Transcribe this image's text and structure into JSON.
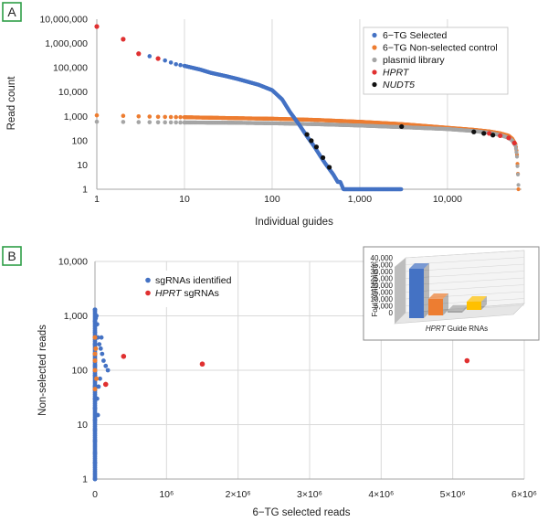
{
  "panels": {
    "a": "A",
    "b": "B"
  },
  "chart_data": [
    {
      "id": "A",
      "type": "scatter",
      "xscale": "log",
      "yscale": "log",
      "xlim": [
        1,
        70000
      ],
      "ylim": [
        1,
        10000000
      ],
      "xlabel": "Individual guides",
      "ylabel": "Read count",
      "xticks": [
        {
          "v": 1,
          "label": "1"
        },
        {
          "v": 10,
          "label": "10"
        },
        {
          "v": 100,
          "label": "100"
        },
        {
          "v": 1000,
          "label": "1,000"
        },
        {
          "v": 10000,
          "label": "10,000"
        }
      ],
      "yticks": [
        {
          "v": 1,
          "label": "1"
        },
        {
          "v": 10,
          "label": "10"
        },
        {
          "v": 100,
          "label": "100"
        },
        {
          "v": 1000,
          "label": "1,000"
        },
        {
          "v": 10000,
          "label": "10,000"
        },
        {
          "v": 100000,
          "label": "100,000"
        },
        {
          "v": 1000000,
          "label": "1,000,000"
        },
        {
          "v": 10000000,
          "label": "10,000,000"
        }
      ],
      "grid": "vertical",
      "legend_position": "top-right",
      "series": [
        {
          "name": "6−TG Selected",
          "color": "#4472c4",
          "style": "dots",
          "points": [
            [
              1,
              5000000
            ],
            [
              2,
              1500000
            ],
            [
              3,
              380000
            ],
            [
              4,
              300000
            ],
            [
              5,
              240000
            ],
            [
              6,
              200000
            ],
            [
              7,
              165000
            ],
            [
              8,
              140000
            ],
            [
              10,
              120000
            ],
            [
              15,
              85000
            ],
            [
              20,
              62000
            ],
            [
              30,
              45000
            ],
            [
              40,
              35000
            ],
            [
              50,
              28000
            ],
            [
              70,
              20000
            ],
            [
              100,
              12000
            ],
            [
              130,
              5000
            ],
            [
              160,
              1500
            ],
            [
              200,
              500
            ],
            [
              250,
              150
            ],
            [
              300,
              60
            ],
            [
              350,
              25
            ],
            [
              400,
              12
            ],
            [
              500,
              4
            ],
            [
              560,
              2
            ],
            [
              600,
              2
            ],
            [
              650,
              1
            ],
            [
              700,
              1
            ],
            [
              1000,
              1
            ],
            [
              2000,
              1
            ],
            [
              3000,
              1
            ]
          ]
        },
        {
          "name": "6−TG Non-selected control",
          "color": "#ed7d31",
          "style": "dots",
          "points": [
            [
              1,
              1100
            ],
            [
              2,
              1050
            ],
            [
              3,
              1000
            ],
            [
              4,
              980
            ],
            [
              5,
              960
            ],
            [
              7,
              940
            ],
            [
              10,
              920
            ],
            [
              20,
              880
            ],
            [
              50,
              830
            ],
            [
              100,
              800
            ],
            [
              300,
              720
            ],
            [
              1000,
              600
            ],
            [
              3000,
              480
            ],
            [
              10000,
              340
            ],
            [
              20000,
              280
            ],
            [
              30000,
              240
            ],
            [
              40000,
              200
            ],
            [
              50000,
              160
            ],
            [
              55000,
              120
            ],
            [
              60000,
              70
            ],
            [
              62000,
              30
            ],
            [
              63000,
              10
            ],
            [
              64000,
              3
            ],
            [
              64500,
              1
            ]
          ]
        },
        {
          "name": "plasmid library",
          "color": "#a5a5a5",
          "style": "dots",
          "points": [
            [
              1,
              600
            ],
            [
              2,
              590
            ],
            [
              3,
              580
            ],
            [
              5,
              570
            ],
            [
              10,
              560
            ],
            [
              30,
              550
            ],
            [
              100,
              520
            ],
            [
              300,
              480
            ],
            [
              1000,
              420
            ],
            [
              3000,
              360
            ],
            [
              10000,
              300
            ],
            [
              20000,
              250
            ],
            [
              30000,
              210
            ],
            [
              40000,
              170
            ],
            [
              50000,
              130
            ],
            [
              55000,
              100
            ],
            [
              60000,
              60
            ],
            [
              62000,
              25
            ],
            [
              63000,
              8
            ],
            [
              64000,
              3
            ],
            [
              64500,
              1.5
            ]
          ]
        },
        {
          "name": "HPRT",
          "color": "#e03030",
          "style": "markers",
          "points": [
            [
              1,
              5000000
            ],
            [
              2,
              1500000
            ],
            [
              3,
              380000
            ],
            [
              5,
              240000
            ],
            [
              30000,
              200
            ],
            [
              40000,
              160
            ],
            [
              50000,
              130
            ],
            [
              58000,
              80
            ]
          ]
        },
        {
          "name": "NUDT5",
          "color": "#111111",
          "style": "markers",
          "points": [
            [
              250,
              180
            ],
            [
              280,
              100
            ],
            [
              320,
              55
            ],
            [
              380,
              20
            ],
            [
              450,
              8
            ],
            [
              3000,
              380
            ],
            [
              20000,
              230
            ],
            [
              26000,
              200
            ],
            [
              33000,
              170
            ]
          ]
        }
      ]
    },
    {
      "id": "B",
      "type": "scatter",
      "xscale": "linear",
      "yscale": "log",
      "xlim": [
        0,
        6000000
      ],
      "ylim": [
        1,
        10000
      ],
      "xlabel": "6−TG selected reads",
      "ylabel": "Non-selected reads",
      "xticks": [
        {
          "v": 0,
          "label": "0"
        },
        {
          "v": 1000000,
          "label": "10⁶"
        },
        {
          "v": 2000000,
          "label": "2×10⁶"
        },
        {
          "v": 3000000,
          "label": "3×10⁶"
        },
        {
          "v": 4000000,
          "label": "4×10⁶"
        },
        {
          "v": 5000000,
          "label": "5×10⁶"
        },
        {
          "v": 6000000,
          "label": "6×10⁶"
        }
      ],
      "yticks": [
        {
          "v": 1,
          "label": "1"
        },
        {
          "v": 10,
          "label": "10"
        },
        {
          "v": 100,
          "label": "100"
        },
        {
          "v": 1000,
          "label": "1,000"
        },
        {
          "v": 10000,
          "label": "10,000"
        }
      ],
      "grid": "both",
      "legend_position": "top-left",
      "series": [
        {
          "name": "sgRNAs identified",
          "color": "#4472c4",
          "points": [
            [
              0,
              1
            ],
            [
              0,
              2
            ],
            [
              0,
              3
            ],
            [
              0,
              5
            ],
            [
              0,
              8
            ],
            [
              0,
              12
            ],
            [
              0,
              20
            ],
            [
              0,
              30
            ],
            [
              0,
              50
            ],
            [
              0,
              80
            ],
            [
              0,
              120
            ],
            [
              0,
              200
            ],
            [
              0,
              300
            ],
            [
              0,
              500
            ],
            [
              0,
              800
            ],
            [
              0,
              1300
            ],
            [
              20000,
              1000
            ],
            [
              30000,
              700
            ],
            [
              40000,
              400
            ],
            [
              60000,
              300
            ],
            [
              80000,
              250
            ],
            [
              100000,
              200
            ],
            [
              120000,
              150
            ],
            [
              150000,
              120
            ],
            [
              180000,
              100
            ],
            [
              70000,
              70
            ],
            [
              50000,
              50
            ],
            [
              30000,
              30
            ],
            [
              40000,
              15
            ],
            [
              10000,
              900
            ],
            [
              90000,
              400
            ]
          ]
        },
        {
          "name": "HPRT sgRNAs",
          "color": "#e03030",
          "points": [
            [
              400000,
              180
            ],
            [
              1500000,
              130
            ],
            [
              5200000,
              150
            ],
            [
              150000,
              55
            ]
          ]
        },
        {
          "name": "",
          "color": "#ed7d31",
          "points": [
            [
              0,
              400
            ],
            [
              0,
              200
            ],
            [
              0,
              100
            ],
            [
              0,
              45
            ],
            [
              0,
              150
            ],
            [
              20000,
              70
            ],
            [
              10000,
              250
            ]
          ]
        }
      ]
    },
    {
      "id": "B-inset",
      "type": "bar",
      "xlabel": "HPRT Guide RNAs",
      "ylabel": "Fold enrichment",
      "ylim": [
        0,
        40000
      ],
      "yticks": [
        {
          "v": 0,
          "label": "0"
        },
        {
          "v": 5000,
          "label": "5,000"
        },
        {
          "v": 10000,
          "label": "10,000"
        },
        {
          "v": 15000,
          "label": "15,000"
        },
        {
          "v": 20000,
          "label": "20,000"
        },
        {
          "v": 25000,
          "label": "25,000"
        },
        {
          "v": 30000,
          "label": "30,000"
        },
        {
          "v": 35000,
          "label": "35,000"
        },
        {
          "v": 40000,
          "label": "40,000"
        }
      ],
      "bars": [
        {
          "value": 36000,
          "color": "#4472c4"
        },
        {
          "value": 12000,
          "color": "#ed7d31"
        },
        {
          "value": 1500,
          "color": "#a5a5a5"
        },
        {
          "value": 6000,
          "color": "#ffc000"
        }
      ]
    }
  ]
}
